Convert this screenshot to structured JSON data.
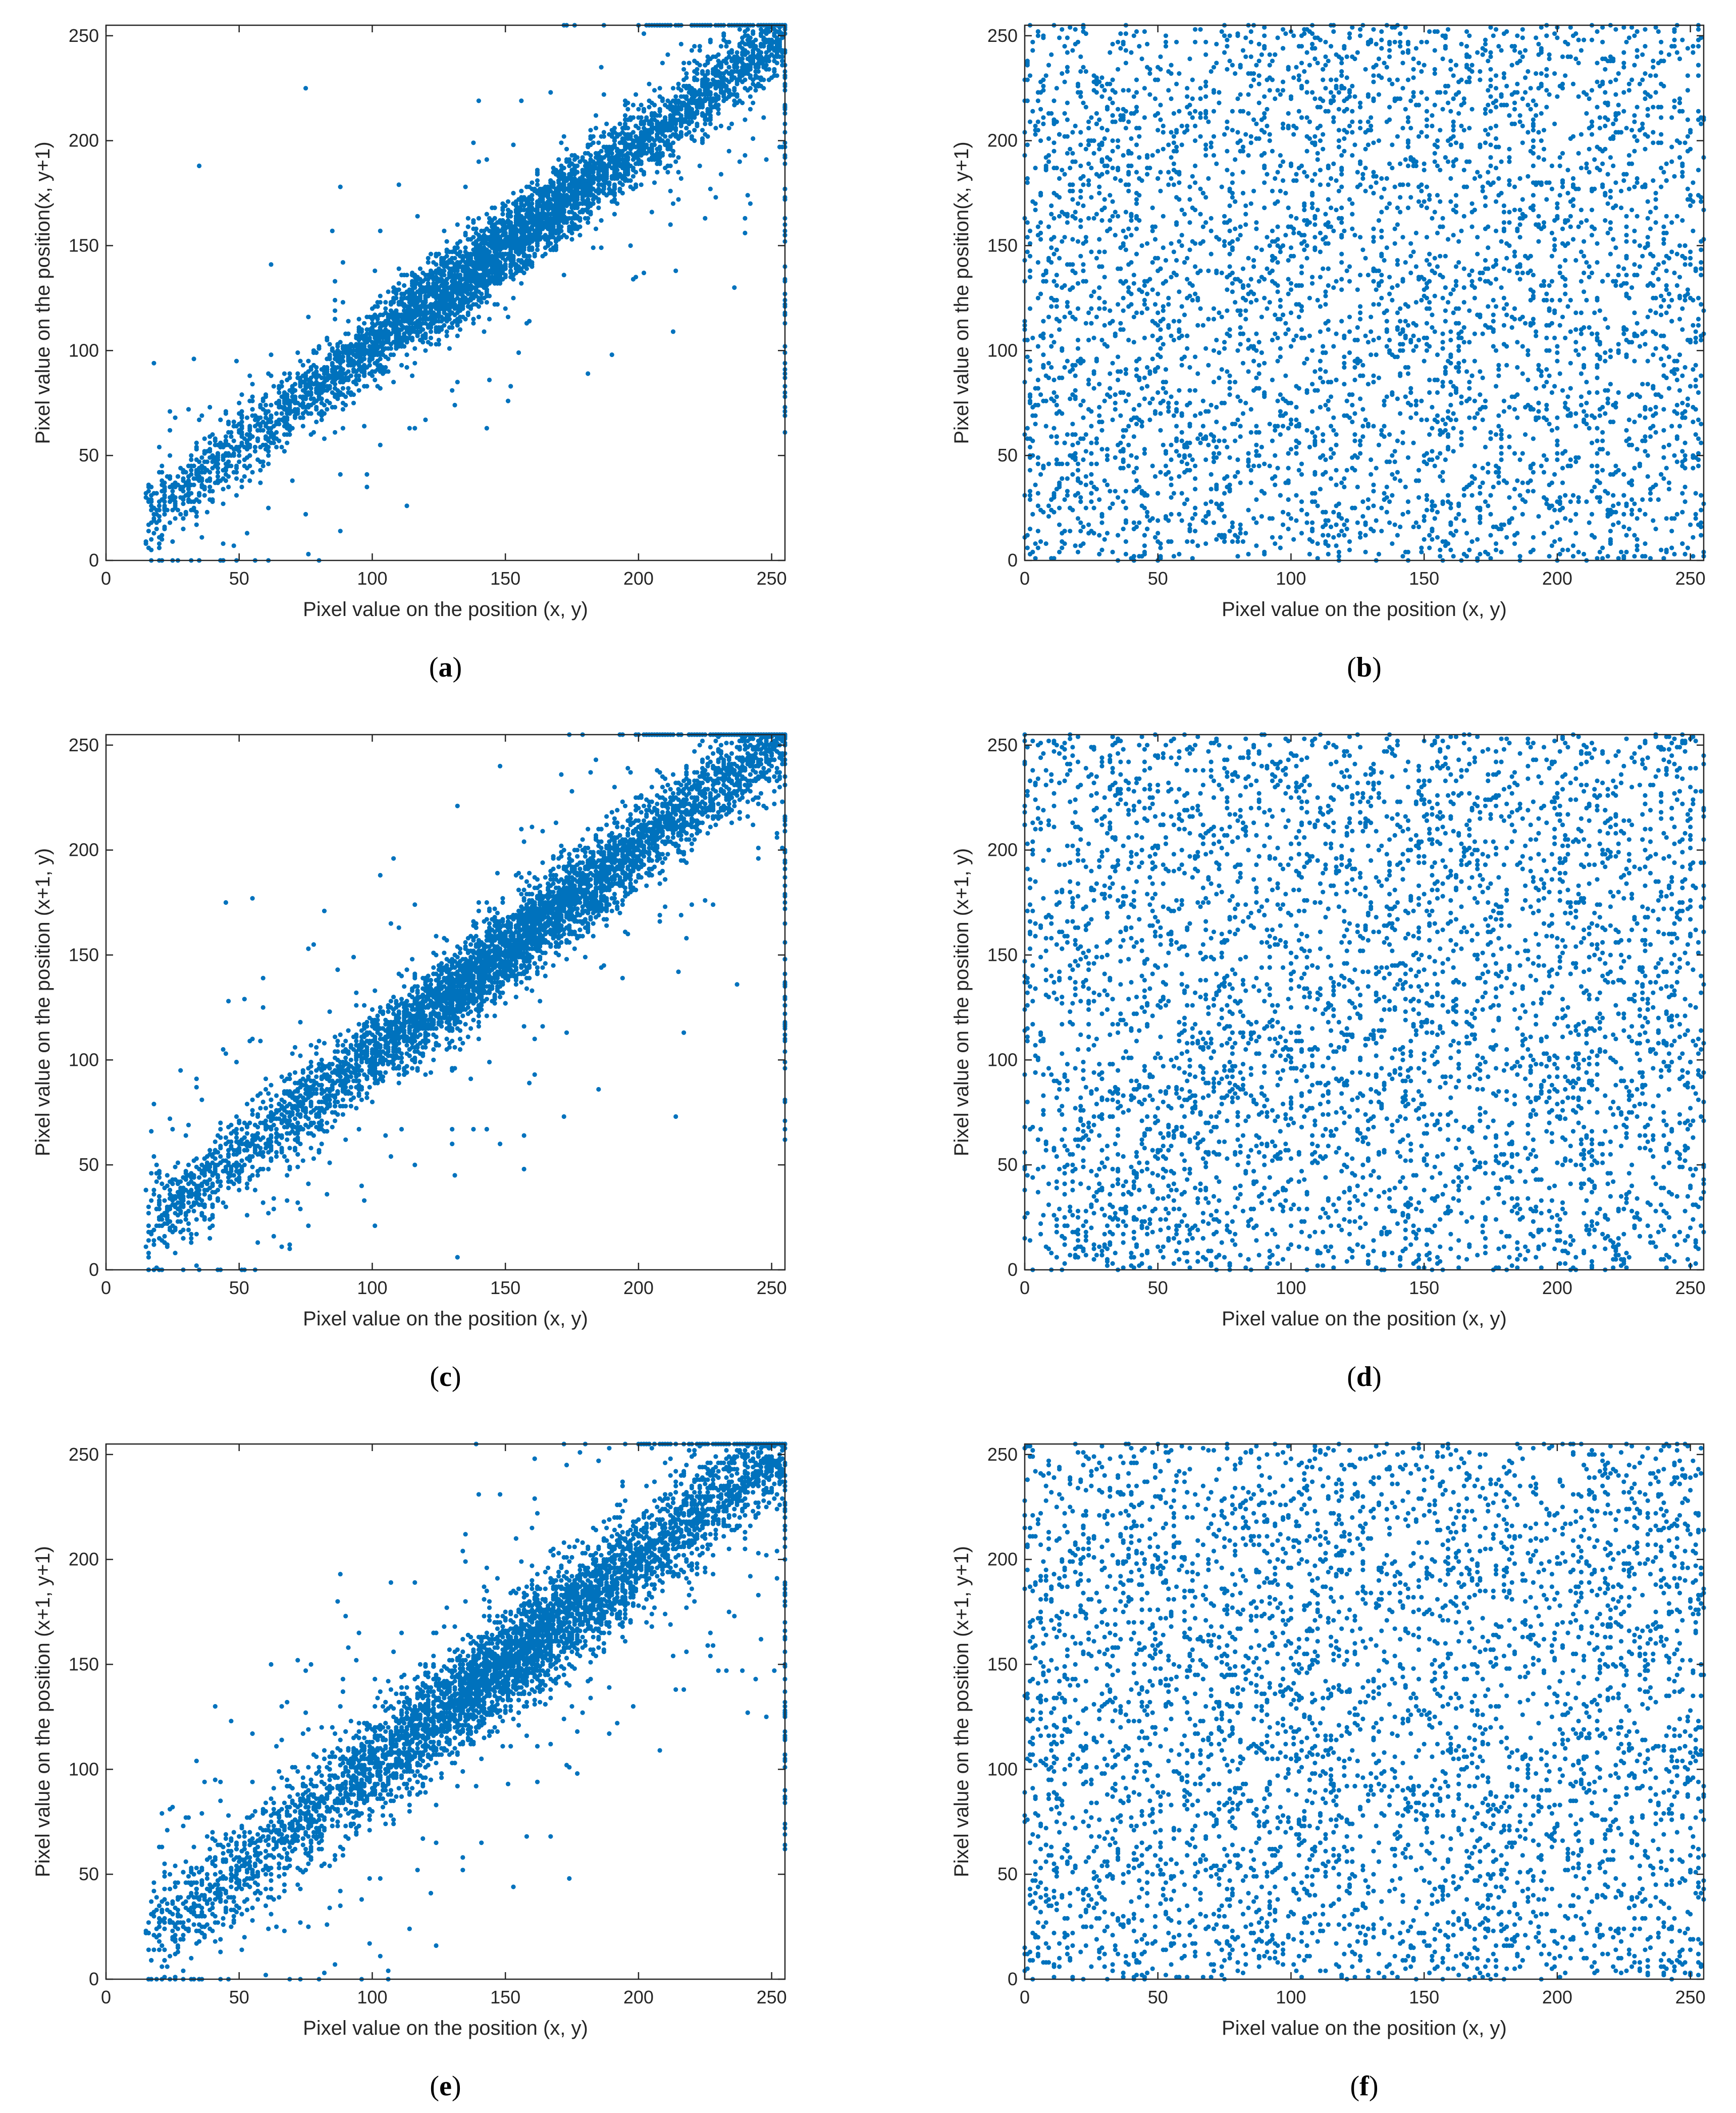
{
  "figure": {
    "marker_color": "#0072BD",
    "axis_color": "#262626"
  },
  "chart_data": [
    {
      "panel": "a",
      "type": "scatter",
      "pattern": "correlated",
      "xlabel": "Pixel value on the position (x, y)",
      "ylabel": "Pixel value on the position(x, y+1)",
      "xlim": [
        0,
        255
      ],
      "ylim": [
        0,
        255
      ],
      "xticks": [
        0,
        50,
        100,
        150,
        200,
        250
      ],
      "yticks": [
        0,
        50,
        100,
        150,
        200,
        250
      ],
      "n_points": 5000,
      "seed": 11,
      "cluster": {
        "x_min": 15,
        "x_max": 255,
        "slope": 0.95,
        "intercept": 8,
        "spread": 9
      },
      "outlier_fraction": 0.05
    },
    {
      "panel": "b",
      "type": "scatter",
      "pattern": "uniform",
      "xlabel": "Pixel value on the position (x, y)",
      "ylabel": "Pixel value on the position(x, y+1)",
      "xlim": [
        0,
        255
      ],
      "ylim": [
        0,
        255
      ],
      "xticks": [
        0,
        50,
        100,
        150,
        200,
        250
      ],
      "yticks": [
        0,
        50,
        100,
        150,
        200,
        250
      ],
      "n_points": 4200,
      "seed": 22
    },
    {
      "panel": "c",
      "type": "scatter",
      "pattern": "correlated",
      "xlabel": "Pixel value on the position (x, y)",
      "ylabel": "Pixel value on the position (x+1, y)",
      "xlim": [
        0,
        255
      ],
      "ylim": [
        0,
        255
      ],
      "xticks": [
        0,
        50,
        100,
        150,
        200,
        250
      ],
      "yticks": [
        0,
        50,
        100,
        150,
        200,
        250
      ],
      "n_points": 5000,
      "seed": 33,
      "cluster": {
        "x_min": 15,
        "x_max": 255,
        "slope": 0.98,
        "intercept": 5,
        "spread": 10
      },
      "outlier_fraction": 0.07
    },
    {
      "panel": "d",
      "type": "scatter",
      "pattern": "uniform",
      "xlabel": "Pixel value on the position (x, y)",
      "ylabel": "Pixel value on the position (x+1, y)",
      "xlim": [
        0,
        255
      ],
      "ylim": [
        0,
        255
      ],
      "xticks": [
        0,
        50,
        100,
        150,
        200,
        250
      ],
      "yticks": [
        0,
        50,
        100,
        150,
        200,
        250
      ],
      "n_points": 4200,
      "seed": 44
    },
    {
      "panel": "e",
      "type": "scatter",
      "pattern": "correlated",
      "xlabel": "Pixel value on the position (x, y)",
      "ylabel": "Pixel value on the position (x+1, y+1)",
      "xlim": [
        0,
        255
      ],
      "ylim": [
        0,
        255
      ],
      "xticks": [
        0,
        50,
        100,
        150,
        200,
        250
      ],
      "yticks": [
        0,
        50,
        100,
        150,
        200,
        250
      ],
      "n_points": 5000,
      "seed": 55,
      "cluster": {
        "x_min": 15,
        "x_max": 255,
        "slope": 0.97,
        "intercept": 5,
        "spread": 12
      },
      "outlier_fraction": 0.09
    },
    {
      "panel": "f",
      "type": "scatter",
      "pattern": "uniform",
      "xlabel": "Pixel value on the position (x, y)",
      "ylabel": "Pixel value on the position (x+1, y+1)",
      "xlim": [
        0,
        255
      ],
      "ylim": [
        0,
        255
      ],
      "xticks": [
        0,
        50,
        100,
        150,
        200,
        250
      ],
      "yticks": [
        0,
        50,
        100,
        150,
        200,
        250
      ],
      "n_points": 4200,
      "seed": 66
    }
  ],
  "captions": [
    "a",
    "b",
    "c",
    "d",
    "e",
    "f"
  ]
}
